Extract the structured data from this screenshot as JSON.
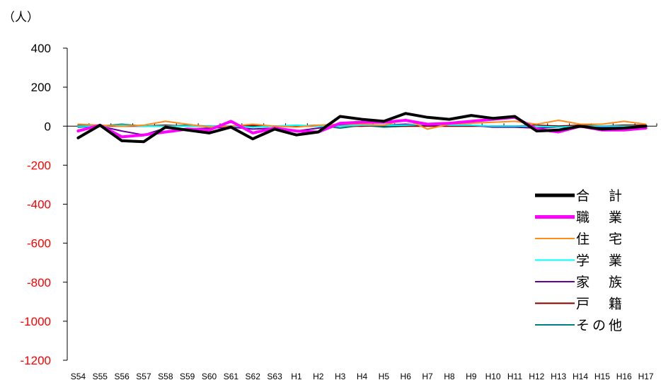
{
  "chart_data": {
    "type": "line",
    "title": "",
    "ylabel": "（人）",
    "xlabel": "",
    "ylim": [
      -1200,
      400
    ],
    "yticks": [
      400,
      200,
      0,
      -200,
      -400,
      -600,
      -800,
      -1000,
      -1200
    ],
    "negative_tick_color": "#ff0000",
    "positive_tick_color": "#000000",
    "legend_position": "right",
    "grid": false,
    "categories": [
      "S54",
      "S55",
      "S56",
      "S57",
      "S58",
      "S59",
      "S60",
      "S61",
      "S62",
      "S63",
      "H1",
      "H2",
      "H3",
      "H4",
      "H5",
      "H6",
      "H7",
      "H8",
      "H9",
      "H10",
      "H11",
      "H12",
      "H13",
      "H14",
      "H15",
      "H16",
      "H17"
    ],
    "series": [
      {
        "name": "合　計",
        "color": "#000000",
        "width": 4,
        "values": [
          -60,
          5,
          -75,
          -80,
          -5,
          -20,
          -35,
          -5,
          -65,
          -15,
          -45,
          -30,
          50,
          35,
          25,
          65,
          45,
          35,
          55,
          40,
          50,
          -25,
          -20,
          0,
          -15,
          -10,
          0
        ]
      },
      {
        "name": "職　業",
        "color": "#ff00ff",
        "width": 4,
        "values": [
          -25,
          5,
          -55,
          -45,
          -30,
          -15,
          -20,
          25,
          -35,
          -10,
          -25,
          -30,
          15,
          20,
          20,
          30,
          10,
          15,
          25,
          35,
          45,
          -15,
          -30,
          0,
          -20,
          -20,
          -10
        ]
      },
      {
        "name": "住　宅",
        "color": "#ff8c1a",
        "width": 2,
        "values": [
          10,
          5,
          0,
          5,
          25,
          10,
          -5,
          0,
          10,
          0,
          -5,
          5,
          10,
          10,
          5,
          35,
          -15,
          10,
          15,
          20,
          25,
          10,
          30,
          10,
          10,
          25,
          10
        ]
      },
      {
        "name": "学　業",
        "color": "#00ffff",
        "width": 2,
        "values": [
          0,
          0,
          5,
          0,
          0,
          0,
          0,
          0,
          -5,
          0,
          5,
          0,
          0,
          5,
          5,
          5,
          10,
          5,
          5,
          0,
          0,
          0,
          -5,
          0,
          0,
          0,
          0
        ]
      },
      {
        "name": "家　族",
        "color": "#660099",
        "width": 2,
        "values": [
          -20,
          0,
          -25,
          -45,
          -10,
          -15,
          -10,
          -5,
          -15,
          -10,
          -25,
          -10,
          5,
          5,
          5,
          10,
          5,
          5,
          5,
          -5,
          -5,
          -10,
          -5,
          -5,
          -5,
          -5,
          -5
        ]
      },
      {
        "name": "戸　籍",
        "color": "#800000",
        "width": 2,
        "values": [
          5,
          0,
          0,
          0,
          5,
          0,
          0,
          0,
          5,
          0,
          0,
          0,
          0,
          0,
          5,
          0,
          0,
          0,
          0,
          0,
          0,
          5,
          0,
          5,
          0,
          5,
          5
        ]
      },
      {
        "name": "その他",
        "color": "#008080",
        "width": 2,
        "values": [
          -5,
          0,
          10,
          0,
          0,
          5,
          0,
          0,
          -5,
          0,
          0,
          5,
          -10,
          5,
          -5,
          0,
          10,
          5,
          5,
          0,
          0,
          0,
          0,
          -5,
          0,
          0,
          0
        ]
      }
    ]
  }
}
